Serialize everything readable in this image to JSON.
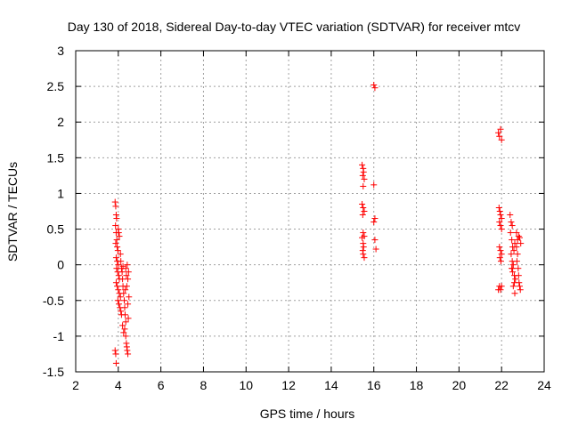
{
  "chart_data": {
    "type": "scatter",
    "title": "Day 130 of 2018, Sidereal Day-to-day VTEC variation (SDTVAR) for receiver mtcv",
    "xlabel": "GPS time / hours",
    "ylabel": "SDTVAR / TECUs",
    "xlim": [
      2,
      24
    ],
    "ylim": [
      -1.5,
      3
    ],
    "xticks": [
      2,
      4,
      6,
      8,
      10,
      12,
      14,
      16,
      18,
      20,
      22,
      24
    ],
    "xtick_labels": [
      "2",
      "4",
      "6",
      "8",
      "10",
      "12",
      "14",
      "16",
      "18",
      "20",
      "22",
      "24"
    ],
    "yticks": [
      -1.5,
      -1,
      -0.5,
      0,
      0.5,
      1,
      1.5,
      2,
      2.5,
      3
    ],
    "ytick_labels": [
      "-1.5",
      "-1",
      "-0.5",
      "0",
      "0.5",
      "1",
      "1.5",
      "2",
      "2.5",
      "3"
    ],
    "grid": true,
    "marker": "+",
    "color": "#ff0000",
    "series": [
      {
        "name": "SDTVAR",
        "points": [
          [
            3.85,
            0.88
          ],
          [
            3.88,
            0.82
          ],
          [
            3.9,
            0.7
          ],
          [
            3.92,
            0.65
          ],
          [
            3.87,
            0.55
          ],
          [
            3.9,
            0.45
          ],
          [
            3.93,
            0.35
          ],
          [
            3.88,
            0.3
          ],
          [
            3.95,
            0.25
          ],
          [
            3.98,
            0.2
          ],
          [
            4.0,
            0.5
          ],
          [
            4.02,
            0.45
          ],
          [
            4.05,
            0.4
          ],
          [
            3.9,
            0.1
          ],
          [
            3.95,
            0.05
          ],
          [
            4.0,
            0.0
          ],
          [
            3.92,
            -0.05
          ],
          [
            3.97,
            -0.1
          ],
          [
            4.02,
            -0.15
          ],
          [
            4.05,
            -0.2
          ],
          [
            3.9,
            -0.25
          ],
          [
            3.95,
            -0.3
          ],
          [
            4.0,
            -0.35
          ],
          [
            4.05,
            -0.4
          ],
          [
            4.1,
            -0.45
          ],
          [
            3.98,
            -0.5
          ],
          [
            4.03,
            -0.55
          ],
          [
            4.08,
            -0.6
          ],
          [
            4.12,
            -0.65
          ],
          [
            4.15,
            -0.7
          ],
          [
            4.1,
            0.15
          ],
          [
            4.12,
            0.05
          ],
          [
            4.15,
            -0.05
          ],
          [
            4.18,
            -0.1
          ],
          [
            4.2,
            -0.2
          ],
          [
            4.22,
            -0.3
          ],
          [
            4.25,
            -0.4
          ],
          [
            4.28,
            -0.5
          ],
          [
            4.3,
            -0.6
          ],
          [
            4.32,
            -0.7
          ],
          [
            4.35,
            -0.8
          ],
          [
            4.3,
            -0.9
          ],
          [
            4.35,
            -1.0
          ],
          [
            4.38,
            -1.1
          ],
          [
            4.4,
            -1.15
          ],
          [
            4.42,
            -1.2
          ],
          [
            4.45,
            -1.25
          ],
          [
            4.4,
            -0.3
          ],
          [
            4.45,
            -0.2
          ],
          [
            4.48,
            -0.1
          ],
          [
            4.42,
            0.0
          ],
          [
            4.35,
            -0.05
          ],
          [
            4.38,
            -0.15
          ],
          [
            4.5,
            -0.45
          ],
          [
            4.45,
            -0.55
          ],
          [
            4.47,
            -0.75
          ],
          [
            4.2,
            -0.85
          ],
          [
            4.25,
            -0.95
          ],
          [
            4.22,
            -0.02
          ],
          [
            3.85,
            -1.2
          ],
          [
            3.88,
            -1.25
          ],
          [
            3.9,
            -1.38
          ],
          [
            4.33,
            -0.35
          ],
          [
            15.45,
            1.4
          ],
          [
            15.5,
            1.35
          ],
          [
            15.52,
            1.3
          ],
          [
            15.48,
            1.25
          ],
          [
            15.55,
            1.2
          ],
          [
            15.5,
            1.1
          ],
          [
            15.45,
            0.85
          ],
          [
            15.5,
            0.8
          ],
          [
            15.55,
            0.75
          ],
          [
            15.48,
            0.7
          ],
          [
            15.5,
            0.45
          ],
          [
            15.55,
            0.4
          ],
          [
            15.45,
            0.38
          ],
          [
            15.5,
            0.3
          ],
          [
            15.52,
            0.25
          ],
          [
            15.48,
            0.2
          ],
          [
            15.5,
            0.15
          ],
          [
            15.55,
            0.1
          ],
          [
            16.0,
            2.52
          ],
          [
            16.05,
            2.48
          ],
          [
            16.0,
            1.12
          ],
          [
            16.05,
            0.65
          ],
          [
            16.0,
            0.6
          ],
          [
            16.05,
            0.35
          ],
          [
            16.1,
            0.22
          ],
          [
            21.85,
            1.85
          ],
          [
            21.9,
            1.8
          ],
          [
            21.95,
            1.9
          ],
          [
            22.0,
            1.75
          ],
          [
            21.88,
            0.8
          ],
          [
            21.92,
            0.75
          ],
          [
            21.95,
            0.7
          ],
          [
            22.0,
            0.65
          ],
          [
            21.9,
            0.6
          ],
          [
            21.95,
            0.55
          ],
          [
            22.0,
            0.5
          ],
          [
            21.9,
            0.25
          ],
          [
            21.95,
            0.2
          ],
          [
            22.0,
            0.15
          ],
          [
            21.92,
            0.1
          ],
          [
            21.97,
            0.05
          ],
          [
            21.9,
            -0.3
          ],
          [
            21.95,
            -0.35
          ],
          [
            22.0,
            -0.3
          ],
          [
            21.85,
            -0.35
          ],
          [
            22.4,
            0.7
          ],
          [
            22.45,
            0.6
          ],
          [
            22.5,
            0.55
          ],
          [
            22.42,
            0.45
          ],
          [
            22.48,
            0.35
          ],
          [
            22.52,
            0.25
          ],
          [
            22.45,
            0.15
          ],
          [
            22.5,
            0.05
          ],
          [
            22.55,
            0.0
          ],
          [
            22.48,
            -0.05
          ],
          [
            22.52,
            -0.1
          ],
          [
            22.6,
            -0.15
          ],
          [
            22.65,
            -0.2
          ],
          [
            22.58,
            0.2
          ],
          [
            22.62,
            0.3
          ],
          [
            22.7,
            0.25
          ],
          [
            22.75,
            0.15
          ],
          [
            22.72,
            0.05
          ],
          [
            22.78,
            -0.05
          ],
          [
            22.8,
            -0.15
          ],
          [
            22.82,
            -0.25
          ],
          [
            22.85,
            -0.3
          ],
          [
            22.88,
            -0.35
          ],
          [
            22.75,
            0.35
          ],
          [
            22.8,
            0.4
          ],
          [
            22.7,
            0.45
          ],
          [
            22.6,
            -0.25
          ],
          [
            22.55,
            -0.3
          ],
          [
            22.62,
            -0.4
          ],
          [
            22.5,
            -0.05
          ],
          [
            22.85,
            0.38
          ],
          [
            22.9,
            0.3
          ]
        ]
      }
    ]
  }
}
